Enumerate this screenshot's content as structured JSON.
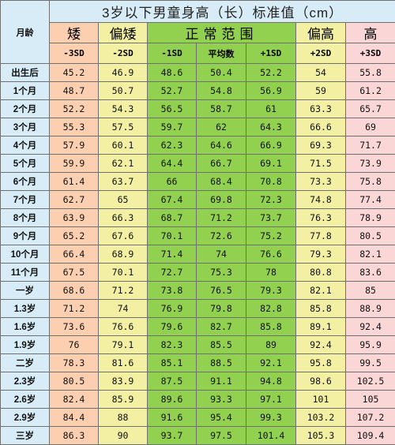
{
  "table": {
    "title": "3岁以下男童身高（长）标准值（cm）",
    "age_header": "月龄",
    "groups": [
      {
        "label": "矮",
        "span": 1
      },
      {
        "label": "偏矮",
        "span": 1
      },
      {
        "label": "正常范围",
        "span": 3
      },
      {
        "label": "偏高",
        "span": 1
      },
      {
        "label": "高",
        "span": 1
      }
    ],
    "sd_labels": [
      "-3SD",
      "-2SD",
      "-1SD",
      "平均数",
      "+1SD",
      "+2SD",
      "+3SD"
    ],
    "rows": [
      {
        "age": "出生后",
        "values": [
          "45.2",
          "46.9",
          "48.6",
          "50.4",
          "52.2",
          "54",
          "55.8"
        ]
      },
      {
        "age": "1个月",
        "values": [
          "48.7",
          "50.7",
          "52.7",
          "54.8",
          "56.9",
          "59",
          "61.2"
        ]
      },
      {
        "age": "2个月",
        "values": [
          "52.2",
          "54.3",
          "56.5",
          "58.7",
          "61",
          "63.3",
          "65.7"
        ]
      },
      {
        "age": "3个月",
        "values": [
          "55.3",
          "57.5",
          "59.7",
          "62",
          "64.3",
          "66.6",
          "69"
        ]
      },
      {
        "age": "4个月",
        "values": [
          "57.9",
          "60.1",
          "62.3",
          "64.6",
          "66.9",
          "69.3",
          "71.7"
        ]
      },
      {
        "age": "5个月",
        "values": [
          "59.9",
          "62.1",
          "64.4",
          "66.7",
          "69.1",
          "71.5",
          "73.9"
        ]
      },
      {
        "age": "6个月",
        "values": [
          "61.4",
          "63.7",
          "66",
          "68.4",
          "70.8",
          "73.3",
          "75.8"
        ]
      },
      {
        "age": "7个月",
        "values": [
          "62.7",
          "65",
          "67.4",
          "69.8",
          "72.3",
          "74.8",
          "77.4"
        ]
      },
      {
        "age": "8个月",
        "values": [
          "63.9",
          "66.3",
          "68.7",
          "71.2",
          "73.7",
          "76.3",
          "78.9"
        ]
      },
      {
        "age": "9个月",
        "values": [
          "65.2",
          "67.6",
          "70.1",
          "72.6",
          "75.2",
          "77.8",
          "80.5"
        ]
      },
      {
        "age": "10个月",
        "values": [
          "66.4",
          "68.9",
          "71.4",
          "74",
          "76.6",
          "79.3",
          "82.1"
        ]
      },
      {
        "age": "11个月",
        "values": [
          "67.5",
          "70.1",
          "72.7",
          "75.3",
          "78",
          "80.8",
          "83.6"
        ]
      },
      {
        "age": "一岁",
        "values": [
          "68.6",
          "71.2",
          "73.8",
          "76.5",
          "79.3",
          "82.1",
          "85"
        ]
      },
      {
        "age": "1.3岁",
        "values": [
          "71.2",
          "74",
          "76.9",
          "79.8",
          "82.8",
          "85.8",
          "88.9"
        ]
      },
      {
        "age": "1.6岁",
        "values": [
          "73.6",
          "76.6",
          "79.6",
          "82.7",
          "85.8",
          "89.1",
          "92.4"
        ]
      },
      {
        "age": "1.9岁",
        "values": [
          "76",
          "79.1",
          "82.3",
          "85.5",
          "89",
          "92.4",
          "95.9"
        ]
      },
      {
        "age": "二岁",
        "values": [
          "78.3",
          "81.6",
          "85.1",
          "88.5",
          "92.1",
          "95.8",
          "99.5"
        ]
      },
      {
        "age": "2.3岁",
        "values": [
          "80.5",
          "83.9",
          "87.5",
          "91.1",
          "94.8",
          "98.6",
          "102.5"
        ]
      },
      {
        "age": "2.6岁",
        "values": [
          "82.4",
          "85.9",
          "89.6",
          "93.3",
          "97.1",
          "101",
          "105"
        ]
      },
      {
        "age": "2.9岁",
        "values": [
          "84.4",
          "88",
          "91.6",
          "95.4",
          "99.3",
          "103.2",
          "107.2"
        ]
      },
      {
        "age": "三岁",
        "values": [
          "86.3",
          "90",
          "93.7",
          "97.5",
          "101.4",
          "105.3",
          "109.4"
        ]
      }
    ]
  },
  "colors": {
    "age_column": "#d7ecf6",
    "short": "#fbcfb0",
    "below_average": "#f3f0a3",
    "normal_range": "#92d050",
    "above_average": "#f3f0a3",
    "tall": "#fbd6d7",
    "grid": "#6f6f6f"
  }
}
